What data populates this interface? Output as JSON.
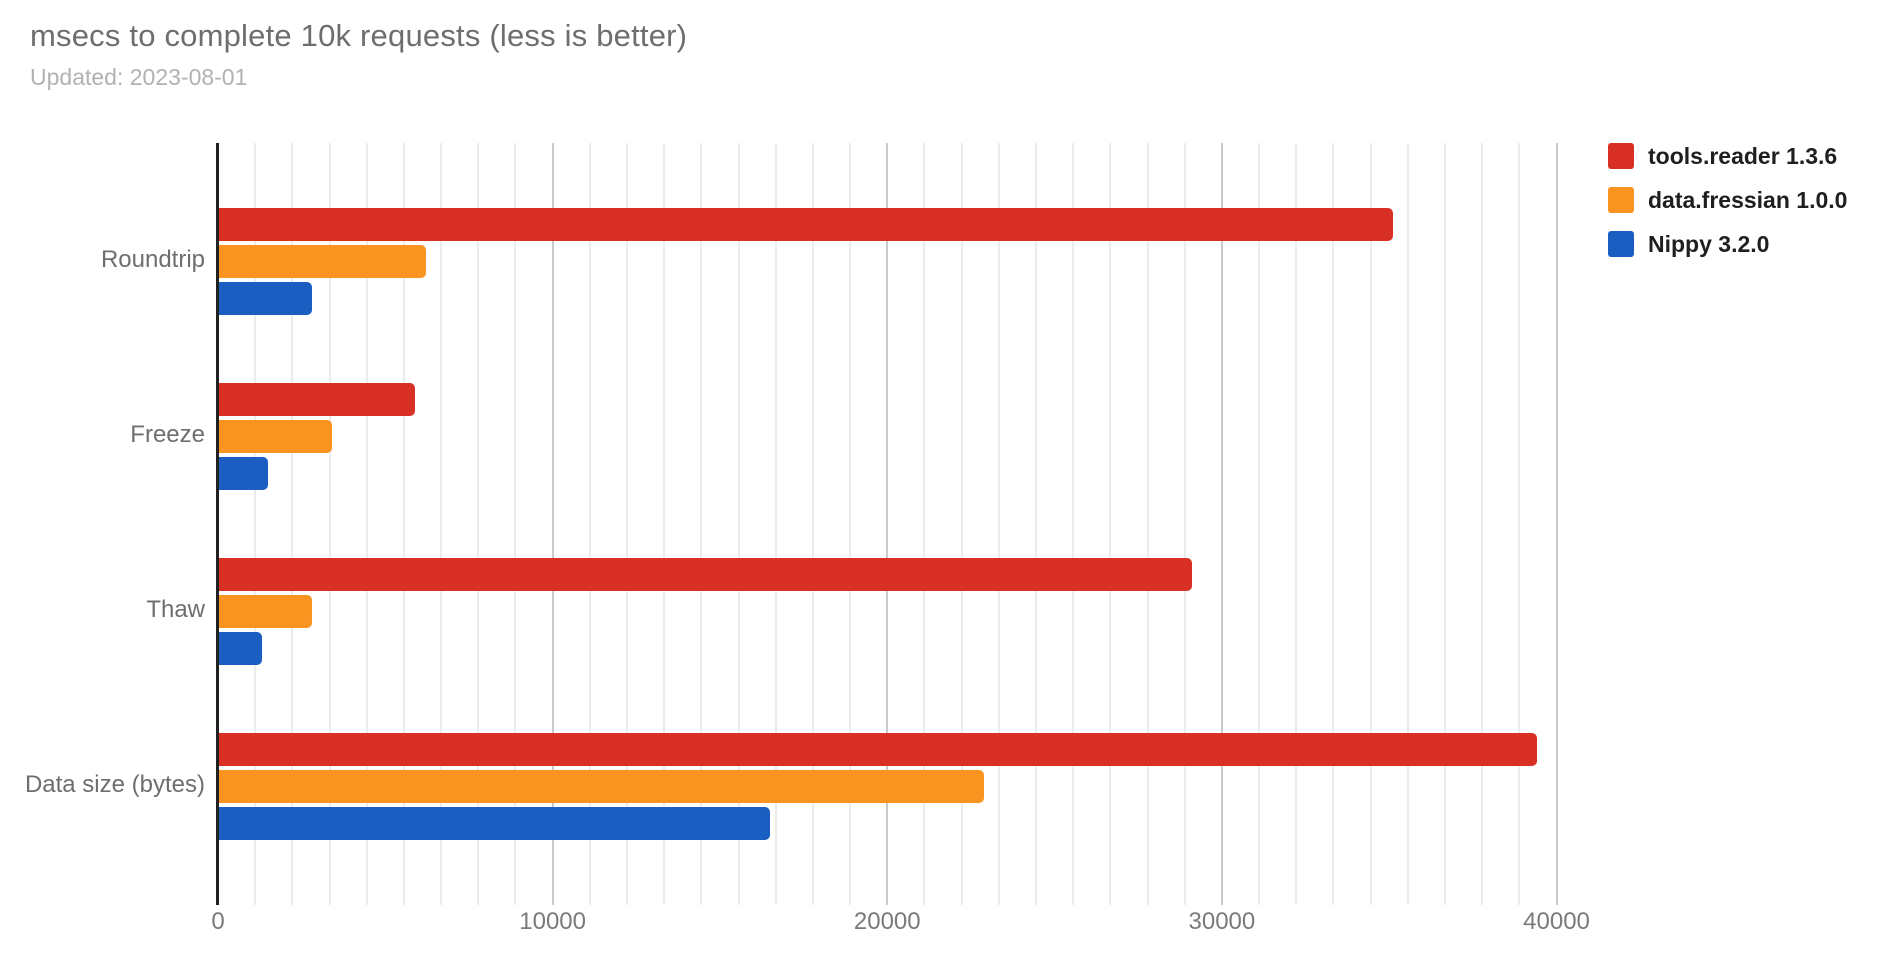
{
  "header": {
    "title": "msecs to complete 10k requests (less is better)",
    "subtitle": "Updated: 2023-08-01"
  },
  "chart_data": {
    "type": "bar",
    "orientation": "horizontal",
    "title": "msecs to complete 10k requests (less is better)",
    "subtitle": "Updated: 2023-08-01",
    "categories": [
      "Roundtrip",
      "Freeze",
      "Thaw",
      "Data size (bytes)"
    ],
    "series": [
      {
        "name": "tools.reader 1.3.6",
        "color": "#d93025",
        "values": [
          35100,
          5900,
          29100,
          39400
        ]
      },
      {
        "name": "data.fressian 1.0.0",
        "color": "#f8941f",
        "values": [
          6200,
          3400,
          2800,
          22900
        ]
      },
      {
        "name": "Nippy 3.2.0",
        "color": "#1b5ec2",
        "values": [
          2800,
          1500,
          1300,
          16500
        ]
      }
    ],
    "xlabel": "",
    "ylabel": "",
    "x_ticks": [
      0,
      10000,
      20000,
      30000,
      40000
    ],
    "xlim": [
      0,
      41000
    ],
    "grid": true,
    "legend_position": "right-top"
  }
}
